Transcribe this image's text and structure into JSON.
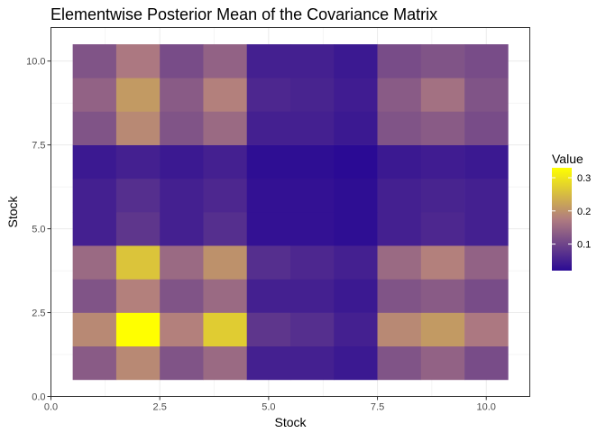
{
  "chart_data": {
    "type": "heatmap",
    "title": "Elementwise Posterior Mean of the Covariance Matrix",
    "xlabel": "Stock",
    "ylabel": "Stock",
    "xlim": [
      0,
      11
    ],
    "ylim": [
      0,
      11
    ],
    "x_ticks": [
      0.0,
      2.5,
      5.0,
      7.5,
      10.0
    ],
    "y_ticks": [
      0.0,
      2.5,
      5.0,
      7.5,
      10.0
    ],
    "x_tick_labels": [
      "0.0",
      "2.5",
      "5.0",
      "7.5",
      "10.0"
    ],
    "y_tick_labels": [
      "0.0",
      "2.5",
      "5.0",
      "7.5",
      "10.0"
    ],
    "grid": true,
    "rows": [
      1,
      2,
      3,
      4,
      5,
      6,
      7,
      8,
      9,
      10
    ],
    "cols": [
      1,
      2,
      3,
      4,
      5,
      6,
      7,
      8,
      9,
      10
    ],
    "values": [
      [
        0.13,
        0.19,
        0.12,
        0.15,
        0.05,
        0.05,
        0.04,
        0.12,
        0.14,
        0.11
      ],
      [
        0.19,
        0.33,
        0.18,
        0.27,
        0.08,
        0.07,
        0.05,
        0.19,
        0.21,
        0.17
      ],
      [
        0.12,
        0.18,
        0.12,
        0.15,
        0.05,
        0.05,
        0.04,
        0.12,
        0.13,
        0.11
      ],
      [
        0.15,
        0.26,
        0.15,
        0.2,
        0.07,
        0.06,
        0.05,
        0.15,
        0.18,
        0.14
      ],
      [
        0.05,
        0.08,
        0.05,
        0.07,
        0.03,
        0.03,
        0.025,
        0.05,
        0.06,
        0.05
      ],
      [
        0.05,
        0.07,
        0.05,
        0.06,
        0.03,
        0.03,
        0.025,
        0.05,
        0.055,
        0.05
      ],
      [
        0.04,
        0.05,
        0.04,
        0.05,
        0.025,
        0.025,
        0.02,
        0.04,
        0.045,
        0.04
      ],
      [
        0.12,
        0.19,
        0.12,
        0.15,
        0.05,
        0.05,
        0.04,
        0.12,
        0.13,
        0.11
      ],
      [
        0.14,
        0.21,
        0.13,
        0.18,
        0.06,
        0.055,
        0.045,
        0.13,
        0.16,
        0.12
      ],
      [
        0.12,
        0.17,
        0.11,
        0.14,
        0.05,
        0.05,
        0.04,
        0.11,
        0.12,
        0.11
      ]
    ],
    "legend": {
      "title": "Value",
      "ticks": [
        0.1,
        0.2,
        0.3
      ],
      "tick_labels": [
        "0.1",
        "0.2",
        "0.3"
      ],
      "range": [
        0.02,
        0.33
      ],
      "placement": "right"
    },
    "colors": {
      "low": "#2a0a94",
      "mid": "#b07c80",
      "high": "#ffff00",
      "grid": "#ebebeb",
      "panel_border": "#333333"
    }
  }
}
